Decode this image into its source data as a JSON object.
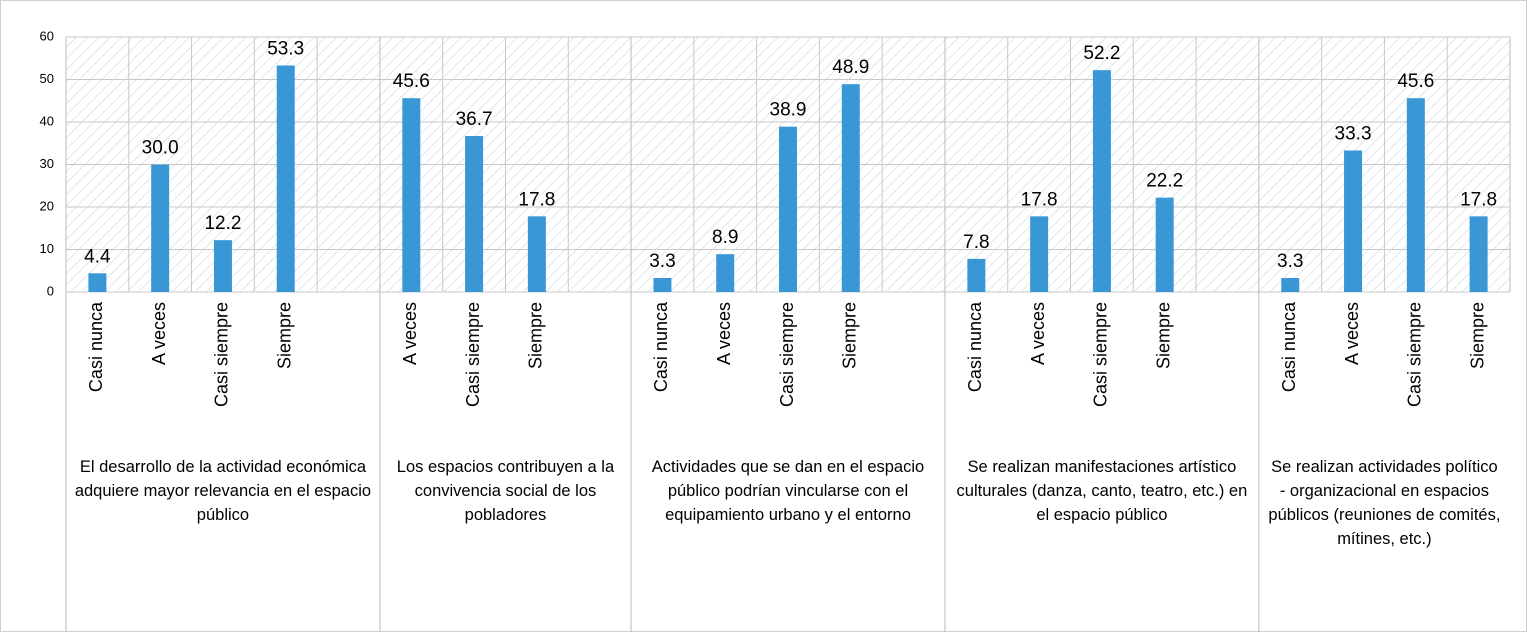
{
  "chart_data": {
    "type": "bar",
    "color": "#3a97d6",
    "ylim": [
      0,
      60
    ],
    "yticks": [
      0,
      10,
      20,
      30,
      40,
      50,
      60
    ],
    "grid": true,
    "groups": [
      {
        "label": "El desarrollo de la actividad económica adquiere mayor relevancia en el espacio público",
        "categories": [
          "Casi nunca",
          "A veces",
          "Casi siempre",
          "Siempre",
          null
        ],
        "values": [
          4.4,
          30.0,
          12.2,
          53.3,
          null
        ],
        "value_labels": [
          "4.4",
          "30.0",
          "12.2",
          "53.3",
          null
        ]
      },
      {
        "label": "Los espacios contribuyen a la convivencia social de los pobladores",
        "categories": [
          "A veces",
          "Casi siempre",
          "Siempre",
          null
        ],
        "values": [
          45.6,
          36.7,
          17.8,
          null
        ],
        "value_labels": [
          "45.6",
          "36.7",
          "17.8",
          null
        ]
      },
      {
        "label": "Actividades que se dan en el espacio público podrían vincularse con el equipamiento urbano y el entorno",
        "categories": [
          "Casi nunca",
          "A veces",
          "Casi siempre",
          "Siempre",
          null
        ],
        "values": [
          3.3,
          8.9,
          38.9,
          48.9,
          null
        ],
        "value_labels": [
          "3.3",
          "8.9",
          "38.9",
          "48.9",
          null
        ]
      },
      {
        "label": "Se realizan manifestaciones artístico culturales (danza, canto, teatro, etc.) en el espacio público",
        "categories": [
          "Casi nunca",
          "A veces",
          "Casi siempre",
          "Siempre",
          null
        ],
        "values": [
          7.8,
          17.8,
          52.2,
          22.2,
          null
        ],
        "value_labels": [
          "7.8",
          "17.8",
          "52.2",
          "22.2",
          null
        ]
      },
      {
        "label": "Se realizan actividades político - organizacional en espacios públicos (reuniones de comités, mítines, etc.)",
        "categories": [
          "Casi nunca",
          "A veces",
          "Casi siempre",
          "Siempre"
        ],
        "values": [
          3.3,
          33.3,
          45.6,
          17.8
        ],
        "value_labels": [
          "3.3",
          "33.3",
          "45.6",
          "17.8"
        ]
      }
    ]
  }
}
